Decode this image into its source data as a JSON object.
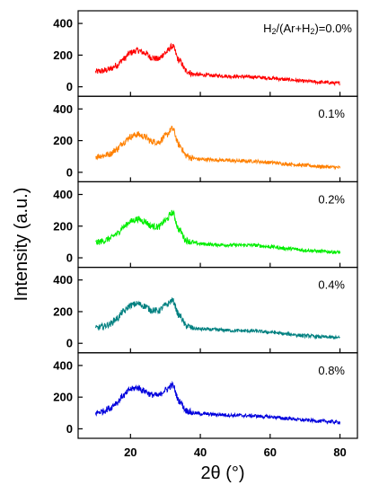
{
  "chart_data": {
    "type": "line",
    "xlabel": "2θ (°)",
    "ylabel": "Intensity (a.u.)",
    "xlim": [
      5,
      85
    ],
    "ylim": [
      -60,
      480
    ],
    "x_ticks": [
      20,
      40,
      60,
      80
    ],
    "y_ticks": [
      0,
      200,
      400
    ],
    "grid": false,
    "legend": "none",
    "panels": [
      {
        "label": "",
        "label_main": "H",
        "label_sub1": "2",
        "label_mid": "/(Ar+H",
        "label_sub2": "2",
        "label_end": ")=0.0%",
        "color": "#ff0000",
        "x": [
          10,
          12,
          14,
          16,
          18,
          20,
          22,
          24,
          26,
          28,
          30,
          32,
          34,
          36,
          38,
          40,
          45,
          50,
          55,
          60,
          65,
          70,
          75,
          80
        ],
        "y": [
          95,
          100,
          110,
          135,
          175,
          215,
          230,
          215,
          185,
          175,
          215,
          255,
          165,
          100,
          80,
          75,
          70,
          65,
          62,
          55,
          45,
          35,
          28,
          22
        ]
      },
      {
        "label": "0.1%",
        "color": "#ff8000",
        "x": [
          10,
          12,
          14,
          16,
          18,
          20,
          22,
          24,
          26,
          28,
          30,
          32,
          34,
          36,
          38,
          40,
          45,
          50,
          55,
          60,
          65,
          70,
          75,
          80
        ],
        "y": [
          100,
          105,
          115,
          145,
          190,
          225,
          240,
          225,
          195,
          190,
          230,
          275,
          170,
          105,
          88,
          82,
          78,
          72,
          70,
          62,
          52,
          44,
          36,
          30
        ]
      },
      {
        "label": "0.2%",
        "color": "#00ee00",
        "x": [
          10,
          12,
          14,
          16,
          18,
          20,
          22,
          24,
          26,
          28,
          30,
          32,
          34,
          36,
          38,
          40,
          45,
          50,
          55,
          60,
          65,
          70,
          75,
          80
        ],
        "y": [
          95,
          105,
          120,
          150,
          195,
          230,
          245,
          230,
          200,
          195,
          235,
          285,
          175,
          110,
          95,
          88,
          82,
          80,
          80,
          70,
          58,
          48,
          40,
          35
        ]
      },
      {
        "label": "0.4%",
        "color": "#008080",
        "x": [
          10,
          12,
          14,
          16,
          18,
          20,
          22,
          24,
          26,
          28,
          30,
          32,
          34,
          36,
          38,
          40,
          45,
          50,
          55,
          60,
          65,
          70,
          75,
          80
        ],
        "y": [
          95,
          105,
          120,
          155,
          200,
          240,
          250,
          235,
          210,
          205,
          240,
          270,
          175,
          110,
          95,
          90,
          85,
          80,
          78,
          70,
          58,
          48,
          40,
          35
        ]
      },
      {
        "label": "0.8%",
        "color": "#0000dd",
        "x": [
          10,
          12,
          14,
          16,
          18,
          20,
          22,
          24,
          26,
          28,
          30,
          32,
          34,
          36,
          38,
          40,
          45,
          50,
          55,
          60,
          65,
          70,
          75,
          80
        ],
        "y": [
          100,
          110,
          130,
          165,
          210,
          250,
          260,
          240,
          215,
          210,
          245,
          275,
          175,
          115,
          100,
          95,
          90,
          85,
          82,
          75,
          65,
          55,
          48,
          42
        ]
      }
    ]
  }
}
